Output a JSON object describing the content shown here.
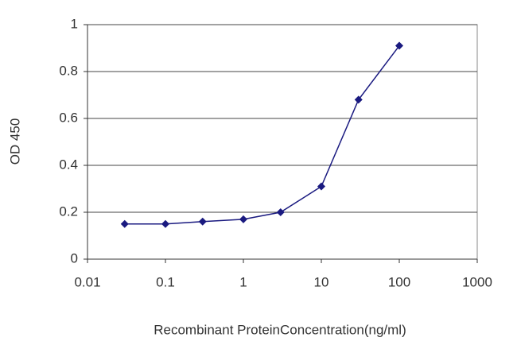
{
  "chart_data": {
    "type": "line",
    "x_label": "Recombinant ProteinConcentration(ng/ml)",
    "y_label": "OD 450",
    "x": [
      0.03,
      0.1,
      0.3,
      1,
      3,
      10,
      30,
      100
    ],
    "series": [
      {
        "color": "#1a1a80",
        "values": [
          0.15,
          0.15,
          0.16,
          0.17,
          0.2,
          0.31,
          0.68,
          0.91
        ]
      }
    ],
    "xscale": "log",
    "xlim": [
      0.01,
      1000
    ],
    "xticks": [
      0.01,
      0.1,
      1,
      10,
      100,
      1000
    ],
    "ylim": [
      0,
      1
    ],
    "yticks": [
      0,
      0.2,
      0.4,
      0.6,
      0.8,
      1
    ],
    "grid": true
  }
}
